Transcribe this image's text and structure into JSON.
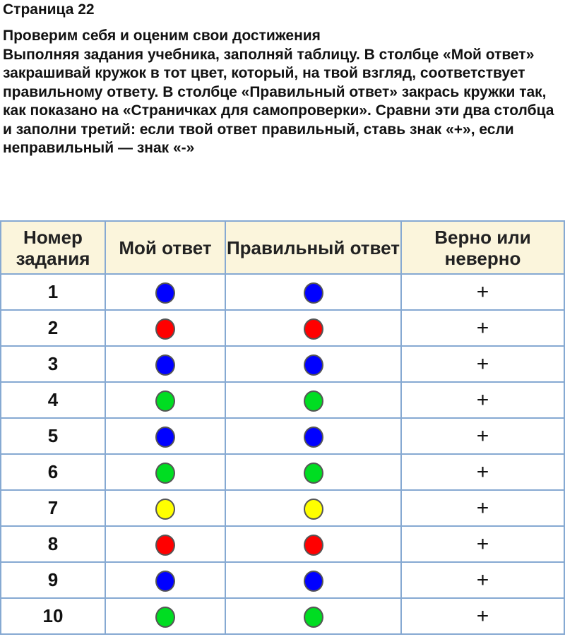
{
  "page_title": "Страница 22",
  "heading": "Проверим себя и оценим свои достижения",
  "instructions": "Выполняя задания учебника, заполняй таблицу. В столбце «Мой ответ» закрашивай кружок в тот цвет, который, на твой взгляд, соответствует правильному ответу. В столбце «Правильный ответ» закрась кружки так, как показано на «Страничках для самопроверки». Сравни эти два столбца и заполни третий: если твой ответ правильный, ставь знак «+», если неправильный — знак «-»",
  "colors": {
    "blue": "#0000ff",
    "red": "#ff0000",
    "green": "#00dd22",
    "yellow": "#ffff00"
  },
  "table": {
    "headers": [
      "Номер задания",
      "Мой ответ",
      "Правильный ответ",
      "Верно или неверно"
    ],
    "rows": [
      {
        "num": "1",
        "mine": "blue",
        "correct": "blue",
        "mark": "+"
      },
      {
        "num": "2",
        "mine": "red",
        "correct": "red",
        "mark": "+"
      },
      {
        "num": "3",
        "mine": "blue",
        "correct": "blue",
        "mark": "+"
      },
      {
        "num": "4",
        "mine": "green",
        "correct": "green",
        "mark": "+"
      },
      {
        "num": "5",
        "mine": "blue",
        "correct": "blue",
        "mark": "+"
      },
      {
        "num": "6",
        "mine": "green",
        "correct": "green",
        "mark": "+"
      },
      {
        "num": "7",
        "mine": "yellow",
        "correct": "yellow",
        "mark": "+"
      },
      {
        "num": "8",
        "mine": "red",
        "correct": "red",
        "mark": "+"
      },
      {
        "num": "9",
        "mine": "blue",
        "correct": "blue",
        "mark": "+"
      },
      {
        "num": "10",
        "mine": "green",
        "correct": "green",
        "mark": "+"
      }
    ]
  }
}
